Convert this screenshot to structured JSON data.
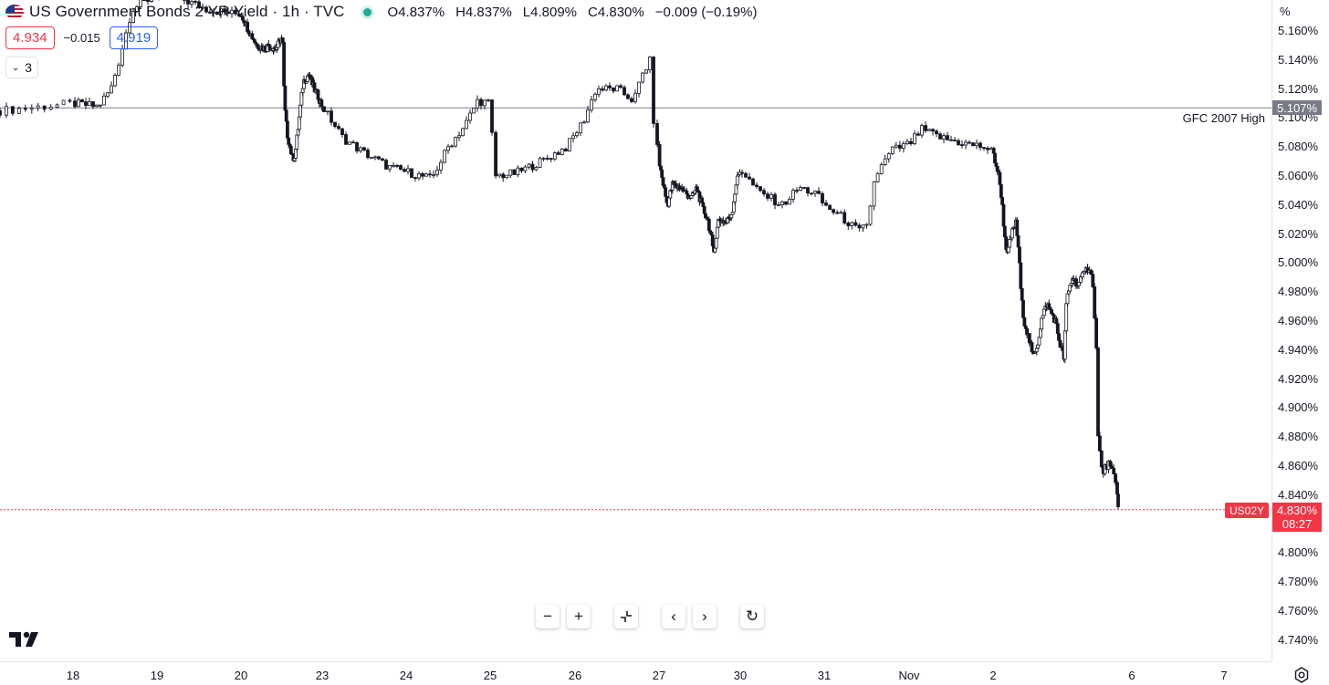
{
  "legend": {
    "title": "US Government Bonds 2 YR Yield · 1h · TVC",
    "open_label": "O",
    "open": "4.837%",
    "high_label": "H",
    "high": "4.837%",
    "low_label": "L",
    "low": "4.809%",
    "close_label": "C",
    "close": "4.830%",
    "change": "−0.009 (−0.19%)"
  },
  "quote": {
    "sell": "4.934",
    "spread": "−0.015",
    "buy": "4.919"
  },
  "indicators_count": "3",
  "price_axis": {
    "unit": "%",
    "ticks": [
      "5.160%",
      "5.140%",
      "5.120%",
      "5.100%",
      "5.080%",
      "5.060%",
      "5.040%",
      "5.020%",
      "5.000%",
      "4.980%",
      "4.960%",
      "4.940%",
      "4.920%",
      "4.900%",
      "4.880%",
      "4.860%",
      "4.840%",
      "4.800%",
      "4.780%",
      "4.760%",
      "4.740%"
    ],
    "hline_value": "5.107%",
    "last_value": "4.830%",
    "countdown": "08:27",
    "symbol": "US02Y"
  },
  "time_axis": {
    "ticks": [
      "18",
      "19",
      "20",
      "23",
      "24",
      "25",
      "26",
      "27",
      "30",
      "31",
      "Nov",
      "2",
      "6",
      "7"
    ]
  },
  "horizontal_line_label": "GFC 2007 High",
  "colors": {
    "up": "#ffffff",
    "down": "#131722",
    "alert": "#f23645",
    "hline": "#787b86",
    "buy": "#2962ff"
  },
  "chart_data": {
    "type": "candlestick",
    "interval": "1h",
    "y_range": [
      4.733,
      5.17
    ],
    "horizontal_lines": [
      {
        "value": 5.107,
        "label": "GFC 2007 High"
      }
    ],
    "last_price": 4.83,
    "path": [
      [
        17.5,
        5.105
      ],
      [
        18.0,
        5.11
      ],
      [
        18.3,
        5.108
      ],
      [
        18.45,
        5.12
      ],
      [
        18.55,
        5.14
      ],
      [
        18.7,
        5.175
      ],
      [
        18.9,
        5.182
      ],
      [
        19.0,
        5.185
      ],
      [
        19.3,
        5.182
      ],
      [
        19.6,
        5.175
      ],
      [
        19.9,
        5.172
      ],
      [
        20.0,
        5.172
      ],
      [
        20.3,
        5.16
      ],
      [
        20.6,
        5.15
      ],
      [
        20.9,
        5.148
      ],
      [
        21.0,
        5.15
      ],
      [
        21.3,
        5.148
      ],
      [
        21.5,
        5.155
      ],
      [
        21.55,
        5.15
      ],
      [
        21.6,
        5.11
      ],
      [
        21.7,
        5.09
      ],
      [
        21.9,
        5.072
      ],
      [
        22.0,
        5.075
      ],
      [
        22.15,
        5.1
      ],
      [
        22.3,
        5.125
      ],
      [
        22.5,
        5.13
      ],
      [
        22.7,
        5.12
      ],
      [
        22.85,
        5.115
      ],
      [
        23.0,
        5.108
      ],
      [
        23.25,
        5.086
      ],
      [
        23.5,
        5.076
      ],
      [
        23.8,
        5.066
      ],
      [
        24.0,
        5.063
      ],
      [
        24.3,
        5.058
      ],
      [
        24.5,
        5.08
      ],
      [
        24.7,
        5.095
      ],
      [
        24.85,
        5.112
      ],
      [
        25.0,
        5.11
      ],
      [
        25.05,
        5.06
      ],
      [
        25.3,
        5.062
      ],
      [
        25.6,
        5.07
      ],
      [
        25.9,
        5.08
      ],
      [
        26.1,
        5.098
      ],
      [
        26.25,
        5.12
      ],
      [
        26.5,
        5.12
      ],
      [
        26.7,
        5.112
      ],
      [
        26.8,
        5.13
      ],
      [
        26.9,
        5.14
      ],
      [
        26.92,
        5.105
      ],
      [
        27.0,
        5.07
      ],
      [
        27.3,
        5.04
      ],
      [
        27.5,
        5.054
      ],
      [
        27.8,
        5.052
      ],
      [
        28.0,
        5.048
      ],
      [
        28.2,
        5.045
      ],
      [
        28.4,
        5.052
      ],
      [
        28.6,
        5.038
      ],
      [
        28.8,
        5.03
      ],
      [
        28.95,
        5.015
      ],
      [
        29.0,
        5.005
      ],
      [
        29.2,
        5.03
      ],
      [
        29.5,
        5.028
      ],
      [
        29.7,
        5.035
      ],
      [
        29.85,
        5.055
      ],
      [
        30.0,
        5.065
      ],
      [
        30.2,
        5.05
      ],
      [
        30.5,
        5.04
      ],
      [
        30.7,
        5.052
      ],
      [
        30.9,
        5.048
      ],
      [
        31.0,
        5.04
      ],
      [
        31.2,
        5.032
      ],
      [
        31.4,
        5.022
      ],
      [
        31.5,
        5.025
      ],
      [
        31.6,
        5.06
      ],
      [
        31.8,
        5.078
      ],
      [
        32.0,
        5.082
      ],
      [
        32.15,
        5.092
      ],
      [
        32.4,
        5.086
      ],
      [
        32.7,
        5.082
      ],
      [
        32.9,
        5.08
      ],
      [
        33.0,
        5.076
      ],
      [
        33.2,
        5.06
      ],
      [
        33.3,
        5.045
      ],
      [
        33.4,
        5.02
      ],
      [
        33.5,
        5.005
      ],
      [
        33.65,
        5.02
      ],
      [
        33.8,
        5.028
      ],
      [
        33.9,
        5.01
      ],
      [
        34.0,
        4.975
      ],
      [
        34.1,
        4.96
      ],
      [
        34.3,
        4.945
      ],
      [
        34.4,
        4.935
      ],
      [
        34.6,
        4.946
      ],
      [
        34.7,
        4.96
      ],
      [
        34.9,
        4.972
      ],
      [
        35.0,
        4.968
      ],
      [
        35.2,
        4.96
      ],
      [
        35.35,
        4.945
      ],
      [
        35.5,
        4.935
      ],
      [
        35.6,
        4.975
      ],
      [
        35.8,
        4.99
      ],
      [
        36.0,
        4.985
      ],
      [
        36.2,
        4.995
      ],
      [
        36.3,
        4.998
      ],
      [
        36.35,
        4.99
      ],
      [
        36.45,
        4.95
      ],
      [
        36.5,
        4.88
      ],
      [
        36.6,
        4.855
      ],
      [
        36.75,
        4.862
      ],
      [
        36.9,
        4.852
      ],
      [
        37.0,
        4.838
      ],
      [
        37.05,
        4.83
      ]
    ]
  }
}
